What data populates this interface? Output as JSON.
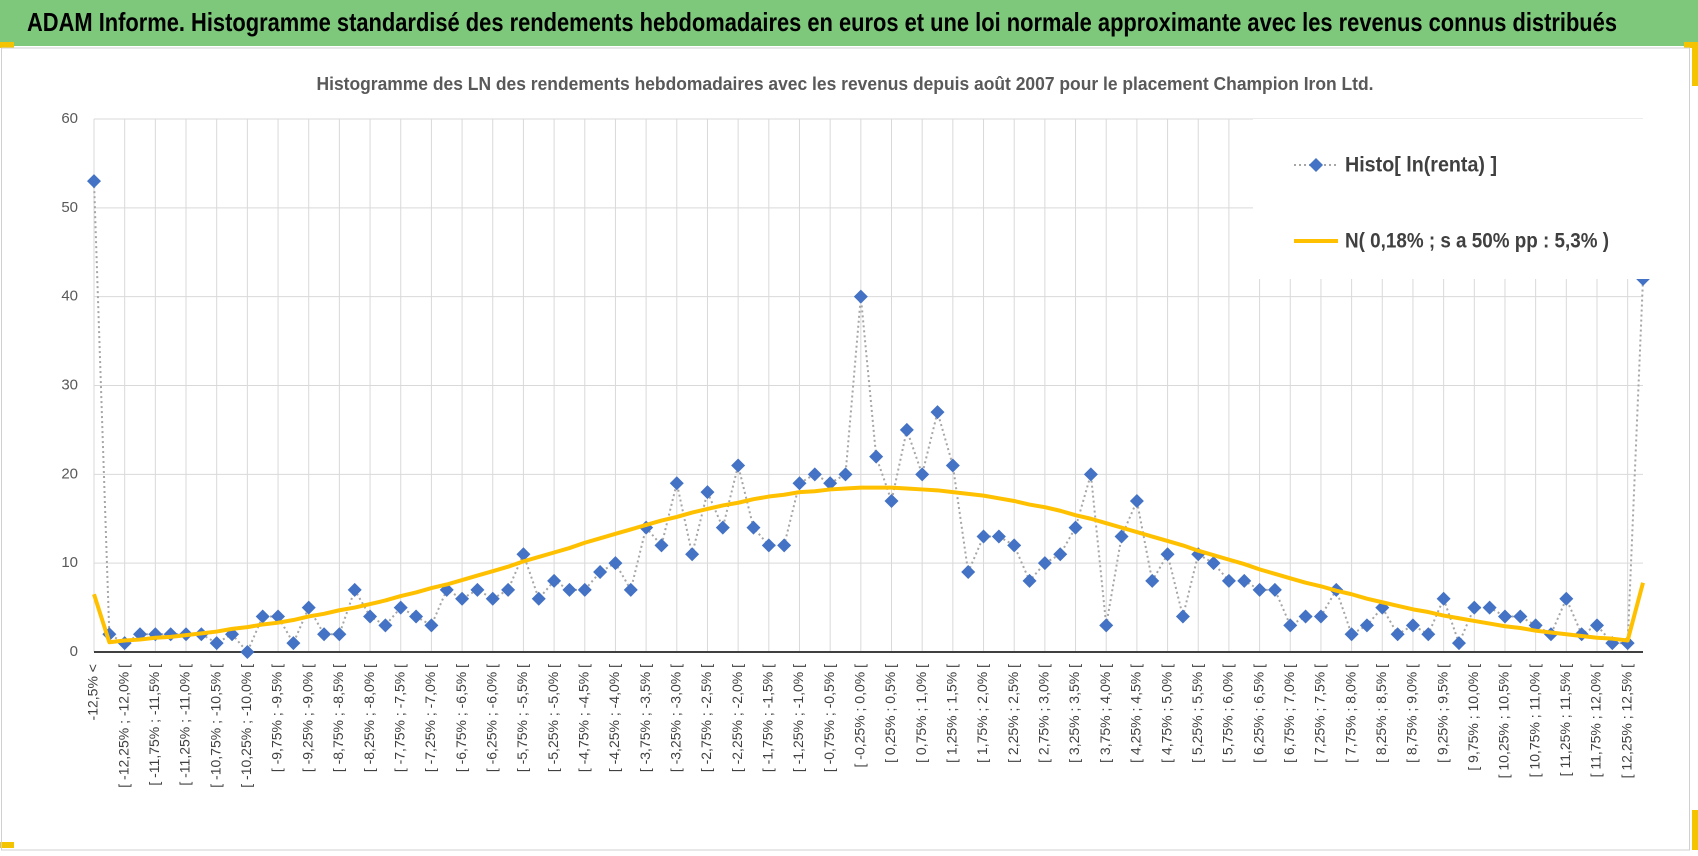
{
  "header": {
    "title": "ADAM Informe. Histogramme standardisé des rendements hebdomadaires en euros et une loi normale approximante avec les revenus connus distribués"
  },
  "chart_data": {
    "type": "line",
    "title": "Histogramme des LN des rendements hebdomadaires avec les revenus depuis août 2007 pour le placement Champion Iron Ltd.",
    "categories": [
      "-12,5% <",
      null,
      "[ -12,25% ; -12,0% [",
      null,
      "[ -11,75% ; -11,5% [",
      null,
      "[ -11,25% ; -11,0% [",
      null,
      "[ -10,75% ; -10,5% [",
      null,
      "[ -10,25% ; -10,0% [",
      null,
      "[ -9,75% ; -9,5% [",
      null,
      "[ -9,25% ; -9,0% [",
      null,
      "[ -8,75% ; -8,5% [",
      null,
      "[ -8,25% ; -8,0% [",
      null,
      "[ -7,75% ; -7,5% [",
      null,
      "[ -7,25% ; -7,0% [",
      null,
      "[ -6,75% ; -6,5% [",
      null,
      "[ -6,25% ; -6,0% [",
      null,
      "[ -5,75% ; -5,5% [",
      null,
      "[ -5,25% ; -5,0% [",
      null,
      "[ -4,75% ; -4,5% [",
      null,
      "[ -4,25% ; -4,0% [",
      null,
      "[ -3,75% ; -3,5% [",
      null,
      "[ -3,25% ; -3,0% [",
      null,
      "[ -2,75% ; -2,5% [",
      null,
      "[ -2,25% ; -2,0% [",
      null,
      "[ -1,75% ; -1,5% [",
      null,
      "[ -1,25% ; -1,0% [",
      null,
      "[ -0,75% ; -0,5% [",
      null,
      "[ -0,25% ; 0,0% [",
      null,
      "[ 0,25% ; 0,5% [",
      null,
      "[ 0,75% ; 1,0% [",
      null,
      "[ 1,25% ; 1,5% [",
      null,
      "[ 1,75% ; 2,0% [",
      null,
      "[ 2,25% ; 2,5% [",
      null,
      "[ 2,75% ; 3,0% [",
      null,
      "[ 3,25% ; 3,5% [",
      null,
      "[ 3,75% ; 4,0% [",
      null,
      "[ 4,25% ; 4,5% [",
      null,
      "[ 4,75% ; 5,0% [",
      null,
      "[ 5,25% ; 5,5% [",
      null,
      "[ 5,75% ; 6,0% [",
      null,
      "[ 6,25% ; 6,5% [",
      null,
      "[ 6,75% ; 7,0% [",
      null,
      "[ 7,25% ; 7,5% [",
      null,
      "[ 7,75% ; 8,0% [",
      null,
      "[ 8,25% ; 8,5% [",
      null,
      "[ 8,75% ; 9,0% [",
      null,
      "[ 9,25% ; 9,5% [",
      null,
      "[ 9,75% ; 10,0% [",
      null,
      "[ 10,25% ; 10,5% [",
      null,
      "[ 10,75% ; 11,0% [",
      null,
      "[ 11,25% ; 11,5% [",
      null,
      "[ 11,75% ; 12,0% [",
      null,
      "[ 12,25% ; 12,5% [",
      null
    ],
    "series": [
      {
        "name": "Histo[ ln(renta) ]",
        "color": "#4472c4",
        "line_color": "#a6a6a6",
        "line_style": "dotted",
        "marker": "diamond",
        "values": [
          53,
          2,
          1,
          2,
          2,
          2,
          2,
          2,
          1,
          2,
          0,
          4,
          4,
          1,
          5,
          2,
          2,
          7,
          4,
          3,
          5,
          4,
          3,
          7,
          6,
          7,
          6,
          7,
          11,
          6,
          8,
          7,
          7,
          9,
          10,
          7,
          14,
          12,
          19,
          11,
          18,
          14,
          21,
          14,
          12,
          12,
          19,
          20,
          19,
          20,
          40,
          22,
          17,
          25,
          20,
          27,
          21,
          9,
          13,
          13,
          12,
          8,
          10,
          11,
          14,
          20,
          3,
          13,
          17,
          8,
          11,
          4,
          11,
          10,
          8,
          8,
          7,
          7,
          3,
          4,
          4,
          7,
          2,
          3,
          5,
          2,
          3,
          2,
          6,
          1,
          5,
          5,
          4,
          4,
          3,
          2,
          6,
          2,
          3,
          1,
          1,
          42
        ]
      },
      {
        "name": "N( 0,18% ; s a 50% pp : 5,3% )",
        "color": "#ffc000",
        "line_style": "solid",
        "marker": "none",
        "values": [
          6.5,
          1.1,
          1.3,
          1.4,
          1.6,
          1.7,
          1.9,
          2.1,
          2.3,
          2.6,
          2.8,
          3.1,
          3.3,
          3.6,
          4.0,
          4.3,
          4.7,
          5.0,
          5.4,
          5.8,
          6.3,
          6.7,
          7.2,
          7.6,
          8.1,
          8.6,
          9.1,
          9.6,
          10.2,
          10.7,
          11.2,
          11.7,
          12.3,
          12.8,
          13.3,
          13.8,
          14.3,
          14.8,
          15.2,
          15.7,
          16.1,
          16.5,
          16.8,
          17.2,
          17.5,
          17.7,
          18.0,
          18.1,
          18.3,
          18.4,
          18.5,
          18.5,
          18.5,
          18.4,
          18.3,
          18.2,
          18.0,
          17.8,
          17.6,
          17.3,
          17.0,
          16.6,
          16.3,
          15.9,
          15.4,
          15.0,
          14.5,
          14.0,
          13.5,
          13.0,
          12.5,
          12.0,
          11.4,
          10.9,
          10.4,
          9.9,
          9.3,
          8.8,
          8.3,
          7.8,
          7.4,
          6.9,
          6.5,
          6.0,
          5.6,
          5.2,
          4.8,
          4.5,
          4.1,
          3.8,
          3.5,
          3.2,
          2.9,
          2.7,
          2.4,
          2.2,
          2.0,
          1.8,
          1.6,
          1.5,
          1.3,
          7.8
        ]
      }
    ],
    "ylim": [
      0,
      60
    ],
    "yticks": [
      0,
      10,
      20,
      30,
      40,
      50,
      60
    ],
    "grid": true,
    "legend": "upper right"
  }
}
